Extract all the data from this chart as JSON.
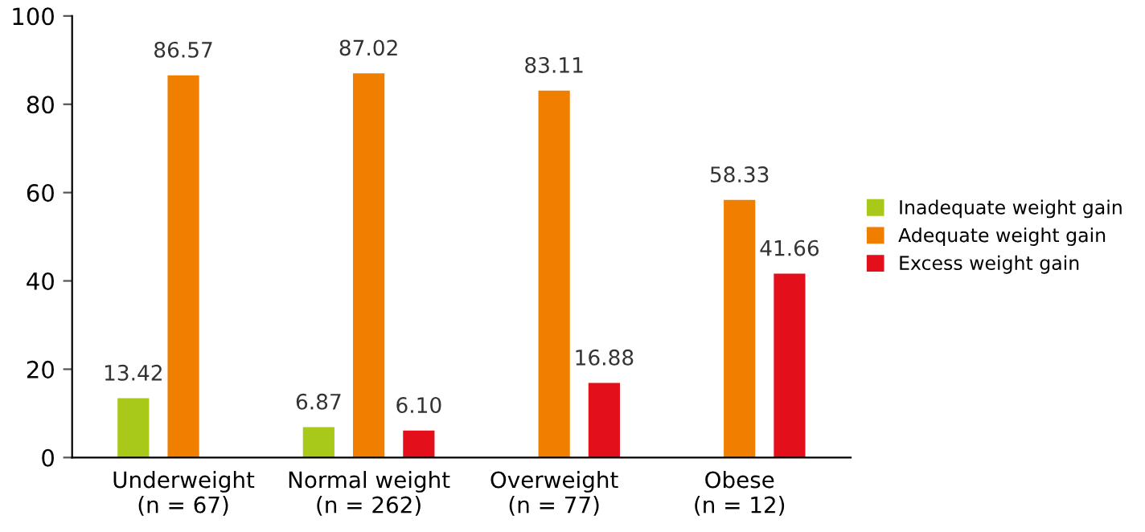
{
  "chart_data": {
    "type": "bar",
    "categories": [
      "Underweight\n(n = 67)",
      "Normal weight\n(n = 262)",
      "Overweight\n(n = 77)",
      "Obese\n(n = 12)"
    ],
    "series": [
      {
        "name": "Inadequate weight gain",
        "color": "#a8c81a",
        "values": [
          13.42,
          6.87,
          null,
          null
        ],
        "value_labels": [
          "13.42",
          "6.87",
          null,
          null
        ]
      },
      {
        "name": "Adequate weight gain",
        "color": "#f07f00",
        "values": [
          86.57,
          87.02,
          83.11,
          58.33
        ],
        "value_labels": [
          "86.57",
          "87.02",
          "83.11",
          "58.33"
        ]
      },
      {
        "name": "Excess weight gain",
        "color": "#e3101c",
        "values": [
          null,
          6.1,
          16.88,
          41.66
        ],
        "value_labels": [
          null,
          "6.10",
          "16.88",
          "41.66"
        ]
      }
    ],
    "ylim": [
      0,
      100
    ],
    "yticks": [
      0,
      20,
      40,
      60,
      80,
      100
    ],
    "grid": false,
    "legend": "right"
  }
}
